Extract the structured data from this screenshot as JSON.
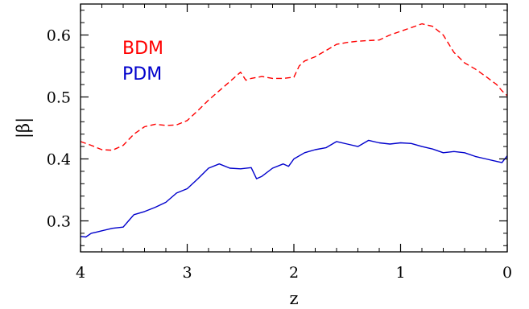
{
  "chart_data": {
    "type": "line",
    "xlabel": "z",
    "ylabel": "|β|",
    "xlim": [
      4,
      0
    ],
    "ylim": [
      0.25,
      0.65
    ],
    "x_reversed": true,
    "x_ticks": [
      4,
      3,
      2,
      1,
      0
    ],
    "x_tick_labels": [
      "4",
      "3",
      "2",
      "1",
      "0"
    ],
    "y_ticks": [
      0.3,
      0.4,
      0.5,
      0.6
    ],
    "y_tick_labels": [
      "0.3",
      "0.4",
      "0.5",
      "0.6"
    ],
    "grid": false,
    "legend_position": "top-left",
    "series": [
      {
        "name": "BDM",
        "color": "#ff0000",
        "line_style": "dashed",
        "x": [
          4.0,
          3.9,
          3.8,
          3.7,
          3.6,
          3.5,
          3.4,
          3.3,
          3.2,
          3.1,
          3.0,
          2.9,
          2.8,
          2.7,
          2.6,
          2.5,
          2.45,
          2.4,
          2.3,
          2.2,
          2.1,
          2.0,
          1.95,
          1.9,
          1.8,
          1.7,
          1.6,
          1.5,
          1.4,
          1.3,
          1.2,
          1.1,
          1.0,
          0.9,
          0.8,
          0.7,
          0.6,
          0.5,
          0.4,
          0.3,
          0.2,
          0.1,
          0.05,
          0.0
        ],
        "y": [
          0.428,
          0.422,
          0.415,
          0.414,
          0.422,
          0.44,
          0.452,
          0.456,
          0.454,
          0.455,
          0.462,
          0.478,
          0.495,
          0.51,
          0.525,
          0.54,
          0.527,
          0.53,
          0.533,
          0.53,
          0.53,
          0.532,
          0.55,
          0.558,
          0.565,
          0.575,
          0.585,
          0.588,
          0.59,
          0.591,
          0.592,
          0.6,
          0.606,
          0.612,
          0.618,
          0.614,
          0.6,
          0.572,
          0.555,
          0.545,
          0.533,
          0.52,
          0.51,
          0.502
        ]
      },
      {
        "name": "PDM",
        "color": "#0000cc",
        "line_style": "solid",
        "x": [
          4.0,
          3.95,
          3.9,
          3.85,
          3.8,
          3.7,
          3.6,
          3.55,
          3.5,
          3.4,
          3.3,
          3.2,
          3.1,
          3.0,
          2.9,
          2.8,
          2.7,
          2.6,
          2.5,
          2.4,
          2.35,
          2.3,
          2.2,
          2.1,
          2.05,
          2.0,
          1.9,
          1.8,
          1.7,
          1.6,
          1.5,
          1.4,
          1.3,
          1.2,
          1.1,
          1.0,
          0.9,
          0.8,
          0.7,
          0.6,
          0.5,
          0.4,
          0.3,
          0.2,
          0.1,
          0.05,
          0.0
        ],
        "y": [
          0.275,
          0.274,
          0.28,
          0.282,
          0.284,
          0.288,
          0.29,
          0.3,
          0.31,
          0.315,
          0.322,
          0.33,
          0.345,
          0.352,
          0.368,
          0.385,
          0.392,
          0.385,
          0.384,
          0.386,
          0.368,
          0.372,
          0.385,
          0.392,
          0.388,
          0.4,
          0.41,
          0.415,
          0.418,
          0.428,
          0.424,
          0.42,
          0.43,
          0.426,
          0.424,
          0.426,
          0.425,
          0.42,
          0.416,
          0.41,
          0.412,
          0.41,
          0.404,
          0.4,
          0.396,
          0.394,
          0.405
        ]
      }
    ]
  }
}
